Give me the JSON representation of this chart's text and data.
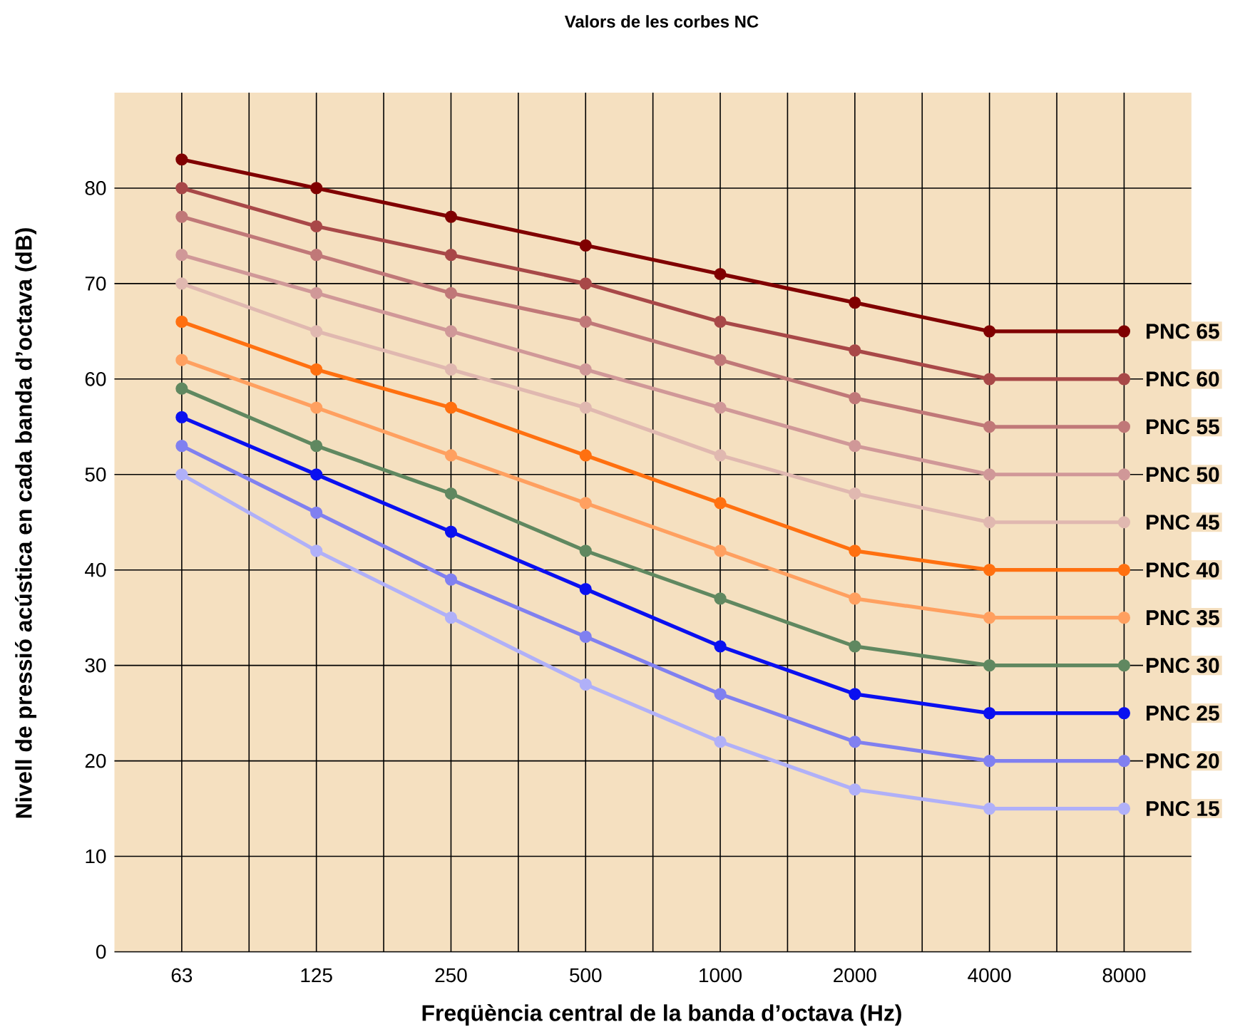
{
  "chart_data": {
    "type": "line",
    "title": "Valors de les corbes NC",
    "xlabel": "Freqüència central de la banda d’octava (Hz)",
    "ylabel": "Nivell de pressió acústica en cada banda d’octava (dB)",
    "categories": [
      "63",
      "125",
      "250",
      "500",
      "1000",
      "2000",
      "4000",
      "8000"
    ],
    "ylim": [
      0,
      90
    ],
    "yticks": [
      0,
      10,
      20,
      30,
      40,
      50,
      60,
      70,
      80
    ],
    "grid": true,
    "marker": "circle",
    "line_style": "solid",
    "series": [
      {
        "name": "PNC 65",
        "color": "#800000",
        "values": [
          83,
          80,
          77,
          74,
          71,
          68,
          65,
          65
        ]
      },
      {
        "name": "PNC 60",
        "color": "#a84848",
        "values": [
          80,
          76,
          73,
          70,
          66,
          63,
          60,
          60
        ]
      },
      {
        "name": "PNC 55",
        "color": "#c07878",
        "values": [
          77,
          73,
          69,
          66,
          62,
          58,
          55,
          55
        ]
      },
      {
        "name": "PNC 50",
        "color": "#d09898",
        "values": [
          73,
          69,
          65,
          61,
          57,
          53,
          50,
          50
        ]
      },
      {
        "name": "PNC 45",
        "color": "#e0b8b0",
        "values": [
          70,
          65,
          61,
          57,
          52,
          48,
          45,
          45
        ]
      },
      {
        "name": "PNC 40",
        "color": "#ff7010",
        "values": [
          66,
          61,
          57,
          52,
          47,
          42,
          40,
          40
        ]
      },
      {
        "name": "PNC 35",
        "color": "#ffa060",
        "values": [
          62,
          57,
          52,
          47,
          42,
          37,
          35,
          35
        ]
      },
      {
        "name": "PNC 30",
        "color": "#608860",
        "values": [
          59,
          53,
          48,
          42,
          37,
          32,
          30,
          30
        ]
      },
      {
        "name": "PNC 25",
        "color": "#0a10f0",
        "values": [
          56,
          50,
          44,
          38,
          32,
          27,
          25,
          25
        ]
      },
      {
        "name": "PNC 20",
        "color": "#8080f0",
        "values": [
          53,
          46,
          39,
          33,
          27,
          22,
          20,
          20
        ]
      },
      {
        "name": "PNC 15",
        "color": "#b0b0f8",
        "values": [
          50,
          42,
          35,
          28,
          22,
          17,
          15,
          15
        ]
      }
    ]
  }
}
